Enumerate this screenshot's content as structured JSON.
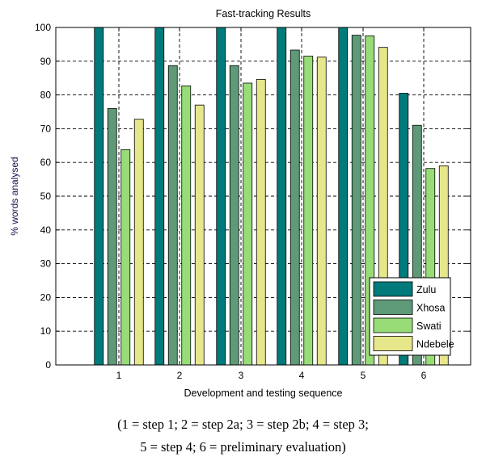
{
  "chart_data": {
    "type": "bar",
    "title": "Fast-tracking Results",
    "xlabel": "Development and testing sequence",
    "ylabel": "% words analysed",
    "categories": [
      "1",
      "2",
      "3",
      "4",
      "5",
      "6"
    ],
    "ylim": [
      0,
      100
    ],
    "yticks": [
      0,
      10,
      20,
      30,
      40,
      50,
      60,
      70,
      80,
      90,
      100
    ],
    "grid": true,
    "legend_position": "bottom-right",
    "series": [
      {
        "name": "Zulu",
        "color": "#007a7a",
        "values": [
          100,
          100,
          100,
          100,
          100,
          80.5
        ]
      },
      {
        "name": "Xhosa",
        "color": "#5e9a78",
        "values": [
          76,
          88.7,
          88.7,
          93.3,
          97.7,
          71
        ]
      },
      {
        "name": "Swati",
        "color": "#98dc78",
        "values": [
          63.8,
          82.7,
          83.5,
          91.5,
          97.5,
          58.2
        ]
      },
      {
        "name": "Ndebele",
        "color": "#e6e68a",
        "values": [
          72.8,
          77,
          84.6,
          91.2,
          94.1,
          59
        ]
      }
    ]
  },
  "caption": {
    "line1": "(1 = step 1; 2 = step 2a; 3 = step 2b; 4 = step 3;",
    "line2": "5 = step 4; 6 =  preliminary evaluation)"
  }
}
